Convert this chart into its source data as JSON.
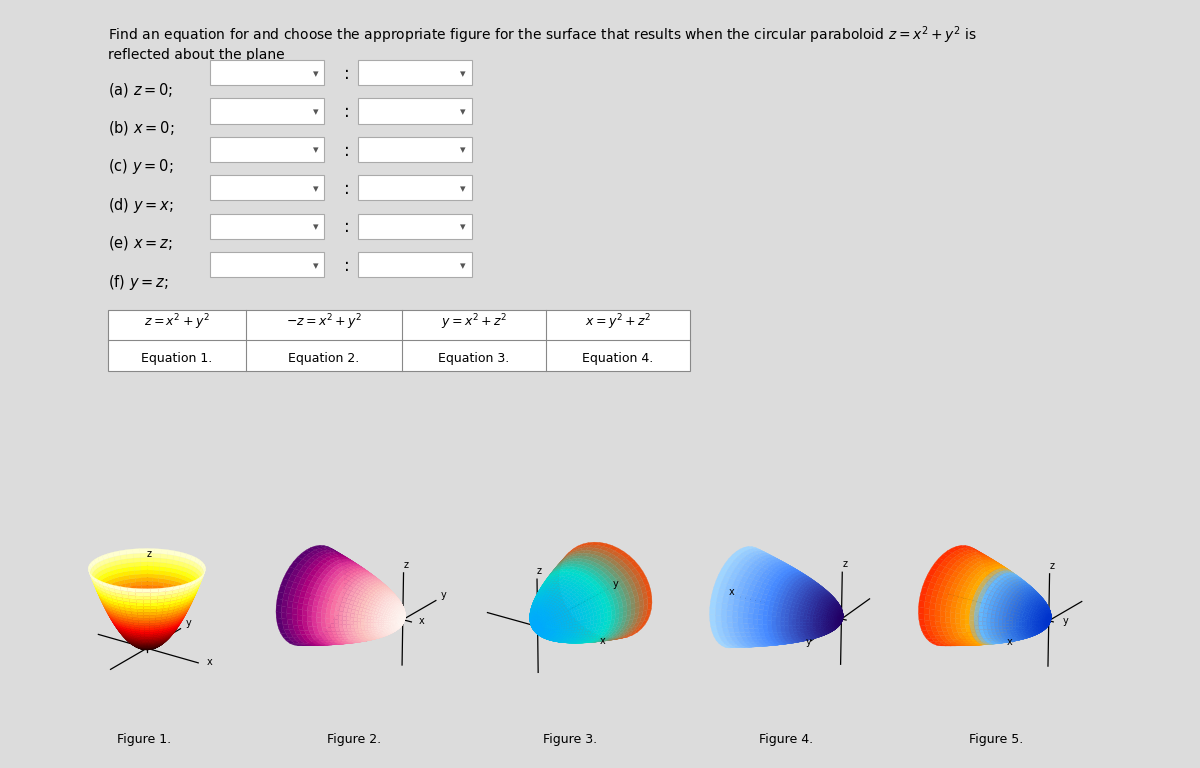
{
  "bg_color": "#dcdcdc",
  "title_line1": "Find an equation for and choose the appropriate figure for the surface that results when the circular paraboloid $z = x^2 + y^2$ is",
  "title_line2": "reflected about the plane",
  "parts": [
    "(a) $z = 0$;",
    "(b) $x = 0$;",
    "(c) $y = 0$;",
    "(d) $y = x$;",
    "(e) $x = z$;",
    "(f) $y = z$;"
  ],
  "equations": [
    "$z = x^2 + y^2$",
    "$-z = x^2 + y^2$",
    "$y = x^2 + z^2$",
    "$x = y^2 + z^2$"
  ],
  "eq_labels": [
    "Equation 1.",
    "Equation 2.",
    "Equation 3.",
    "Equation 4."
  ],
  "fig_labels": [
    "Figure 1.",
    "Figure 2.",
    "Figure 3.",
    "Figure 4.",
    "Figure 5."
  ]
}
